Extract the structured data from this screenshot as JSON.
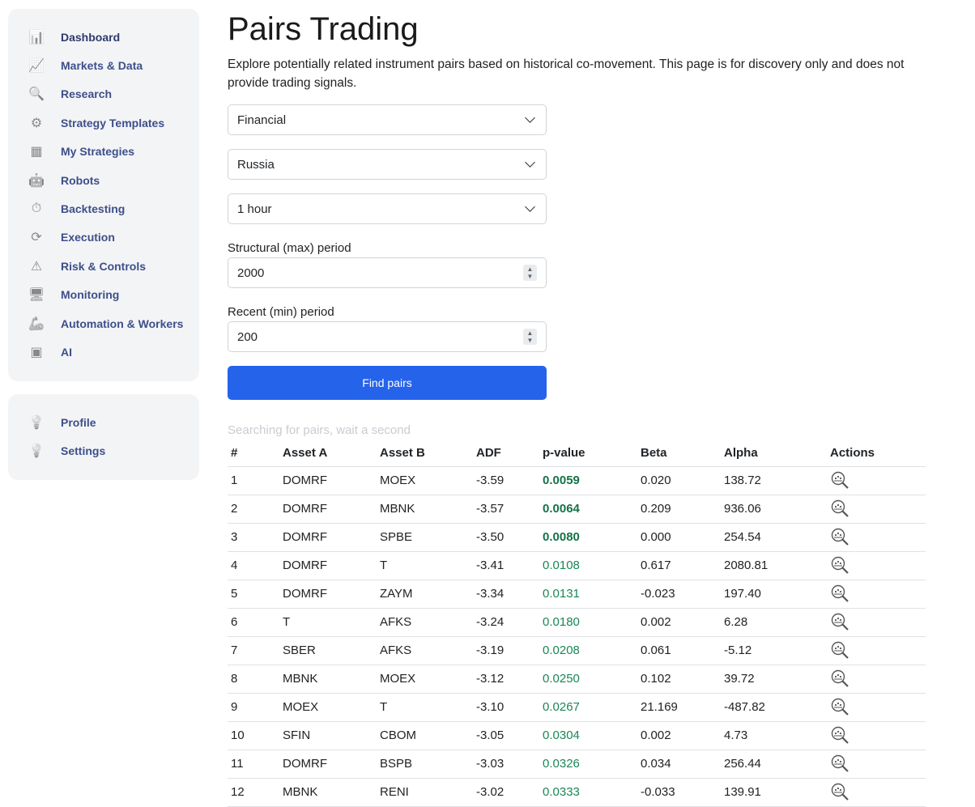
{
  "sidebar": {
    "items": [
      {
        "label": "Dashboard",
        "icon": "dashboard-icon",
        "active": true
      },
      {
        "label": "Markets & Data",
        "icon": "markets-chart-icon"
      },
      {
        "label": "Research",
        "icon": "research-magnifier-icon"
      },
      {
        "label": "Strategy Templates",
        "icon": "template-gear-icon"
      },
      {
        "label": "My Strategies",
        "icon": "whiteboard-icon"
      },
      {
        "label": "Robots",
        "icon": "robot-icon"
      },
      {
        "label": "Backtesting",
        "icon": "backtest-clock-icon"
      },
      {
        "label": "Execution",
        "icon": "execution-cycle-icon"
      },
      {
        "label": "Risk & Controls",
        "icon": "risk-warning-icon"
      },
      {
        "label": "Monitoring",
        "icon": "monitor-icon"
      },
      {
        "label": "Automation & Workers",
        "icon": "robot-arm-icon"
      },
      {
        "label": "AI",
        "icon": "ai-chip-icon"
      }
    ],
    "secondary": [
      {
        "label": "Profile",
        "icon": "lightbulb-icon"
      },
      {
        "label": "Settings",
        "icon": "lightbulb-icon"
      }
    ]
  },
  "page": {
    "title": "Pairs Trading",
    "description": "Explore potentially related instrument pairs based on historical co-movement. This page is for discovery only and does not provide trading signals."
  },
  "form": {
    "sector": "Financial",
    "country": "Russia",
    "timeframe": "1 hour",
    "structural_label": "Structural (max) period",
    "structural_value": "2000",
    "recent_label": "Recent (min) period",
    "recent_value": "200",
    "find_label": "Find pairs",
    "status": "Searching for pairs, wait a second"
  },
  "table": {
    "headers": [
      "#",
      "Asset A",
      "Asset B",
      "ADF",
      "p-value",
      "Beta",
      "Alpha",
      "Actions"
    ],
    "rows": [
      [
        "1",
        "DOMRF",
        "MOEX",
        "-3.59",
        "0.0059",
        "0.020",
        "138.72"
      ],
      [
        "2",
        "DOMRF",
        "MBNK",
        "-3.57",
        "0.0064",
        "0.209",
        "936.06"
      ],
      [
        "3",
        "DOMRF",
        "SPBE",
        "-3.50",
        "0.0080",
        "0.000",
        "254.54"
      ],
      [
        "4",
        "DOMRF",
        "T",
        "-3.41",
        "0.0108",
        "0.617",
        "2080.81"
      ],
      [
        "5",
        "DOMRF",
        "ZAYM",
        "-3.34",
        "0.0131",
        "-0.023",
        "197.40"
      ],
      [
        "6",
        "T",
        "AFKS",
        "-3.24",
        "0.0180",
        "0.002",
        "6.28"
      ],
      [
        "7",
        "SBER",
        "AFKS",
        "-3.19",
        "0.0208",
        "0.061",
        "-5.12"
      ],
      [
        "8",
        "MBNK",
        "MOEX",
        "-3.12",
        "0.0250",
        "0.102",
        "39.72"
      ],
      [
        "9",
        "MOEX",
        "T",
        "-3.10",
        "0.0267",
        "21.169",
        "-487.82"
      ],
      [
        "10",
        "SFIN",
        "CBOM",
        "-3.05",
        "0.0304",
        "0.002",
        "4.73"
      ],
      [
        "11",
        "DOMRF",
        "BSPB",
        "-3.03",
        "0.0326",
        "0.034",
        "256.44"
      ],
      [
        "12",
        "MBNK",
        "RENI",
        "-3.02",
        "0.0333",
        "-0.033",
        "139.91"
      ]
    ]
  },
  "colors": {
    "accent": "#2563eb",
    "significant": "#157347",
    "pvalue": "#198754",
    "nav_text": "#3d4f8a"
  }
}
